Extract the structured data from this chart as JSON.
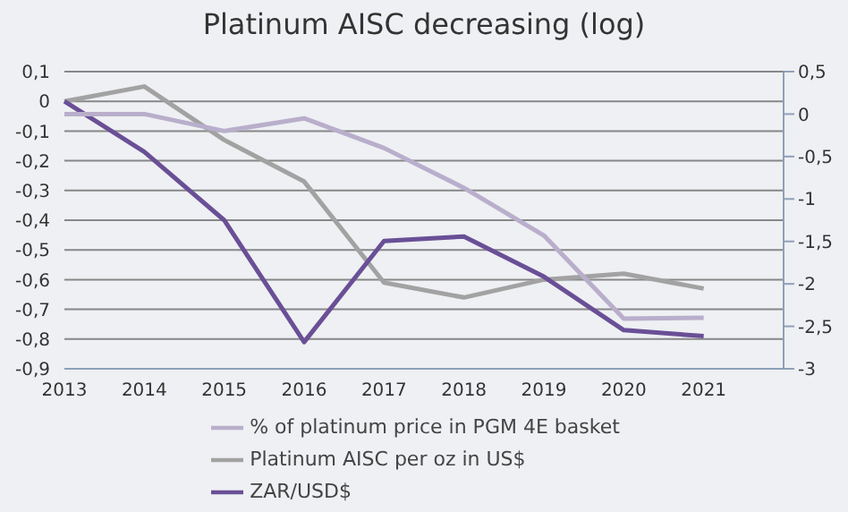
{
  "chart_data": {
    "type": "line",
    "title": "Platinum AISC decreasing (log)",
    "categories": [
      "2013",
      "2014",
      "2015",
      "2016",
      "2017",
      "2018",
      "2019",
      "2020",
      "2021",
      null
    ],
    "series": [
      {
        "name": "Platinum AISC per oz in US$",
        "color": "#a3a2a2",
        "values": [
          0,
          0.05,
          -0.13,
          -0.27,
          -0.61,
          -0.66,
          -0.6,
          -0.58,
          -0.63,
          null
        ]
      },
      {
        "name": "ZAR/USD$",
        "color": "#6a4f96",
        "values": [
          0,
          -0.17,
          -0.4,
          -0.81,
          -0.47,
          -0.455,
          -0.59,
          -0.77,
          -0.79,
          null
        ]
      },
      {
        "name": "% of platinum price in PGM 4E basket",
        "color": "#b9aecb",
        "axis": "y2",
        "values": [
          0,
          0,
          -0.2,
          -0.05,
          -0.4,
          -0.87,
          -1.43,
          -2.41,
          -2.4,
          null
        ]
      }
    ],
    "ylim": [
      -0.9,
      0.1
    ],
    "yticks": [
      {
        "value": 0.1,
        "label": "0,1"
      },
      0,
      {
        "value": -0.1,
        "label": "-0,1"
      },
      {
        "value": -0.2,
        "label": "-0,2"
      },
      {
        "value": -0.3,
        "label": "-0,3"
      },
      {
        "value": -0.4,
        "label": "-0,4"
      },
      {
        "value": -0.5,
        "label": "-0,5"
      },
      {
        "value": -0.6,
        "label": "-0,6"
      },
      {
        "value": -0.7,
        "label": "-0,7"
      },
      {
        "value": -0.8,
        "label": "-0,8"
      },
      {
        "value": -0.9,
        "label": "-0,9"
      }
    ],
    "y2lim": [
      -3,
      0.5
    ],
    "y2ticks": [
      {
        "value": 0.5,
        "label": "0,5"
      },
      0,
      {
        "value": -0.5,
        "label": "-0,5"
      },
      -1,
      {
        "value": -1.5,
        "label": "-1,5"
      },
      -2,
      {
        "value": -2.5,
        "label": "-2,5"
      },
      -3
    ],
    "grid": "y",
    "legend": "bottom",
    "marker": "none",
    "line_style": "solid"
  }
}
